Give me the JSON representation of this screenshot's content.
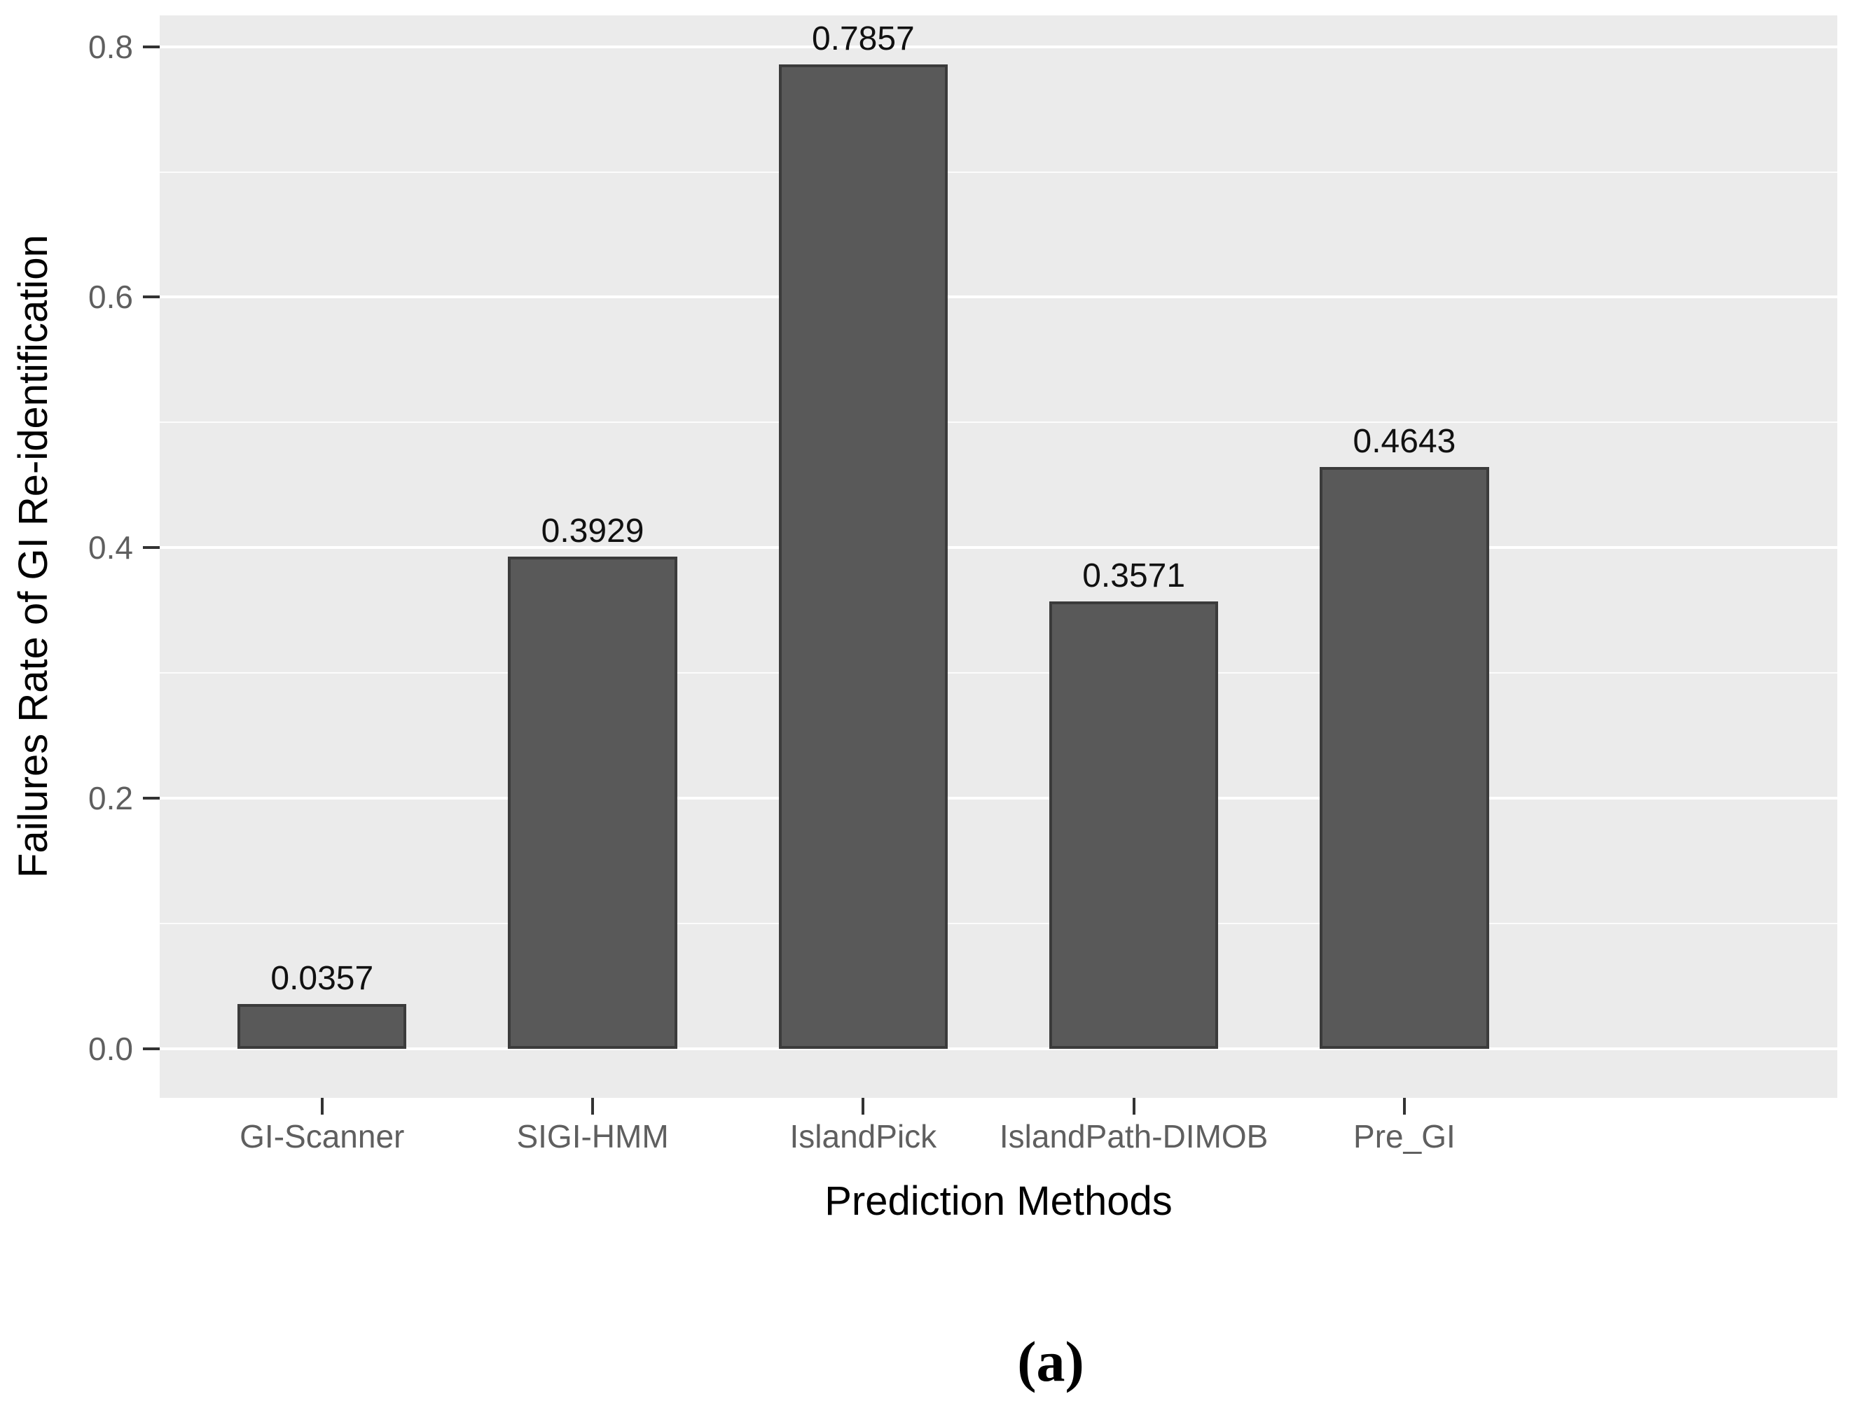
{
  "figure": {
    "caption": "(a)"
  },
  "chart_data": {
    "type": "bar",
    "title": "",
    "xlabel": "Prediction Methods",
    "ylabel": "Failures Rate of GI Re-identification",
    "categories": [
      "GI-Scanner",
      "SIGI-HMM",
      "IslandPick",
      "IslandPath-DIMOB",
      "Pre_GI"
    ],
    "values": [
      0.0357,
      0.3929,
      0.7857,
      0.3571,
      0.4643
    ],
    "value_labels": [
      "0.0357",
      "0.3929",
      "0.7857",
      "0.3571",
      "0.4643"
    ],
    "yticks": [
      0.0,
      0.2,
      0.4,
      0.6,
      0.8
    ],
    "ytick_labels": [
      "0.0",
      "0.2",
      "0.4",
      "0.6",
      "0.8"
    ],
    "minor_grid_values": [
      0.1,
      0.3,
      0.5,
      0.7
    ],
    "ylim": [
      -0.0393,
      0.825
    ],
    "grid": "on",
    "legend": "none",
    "colors": {
      "panel_bg": "#ebebeb",
      "grid": "#ffffff",
      "bar_fill": "#595959",
      "bar_border": "#3b3b3b",
      "tick_mark": "#333333",
      "axis_text": "#5f5f5f",
      "axis_title": "#000000",
      "value_label": "#111111"
    }
  }
}
